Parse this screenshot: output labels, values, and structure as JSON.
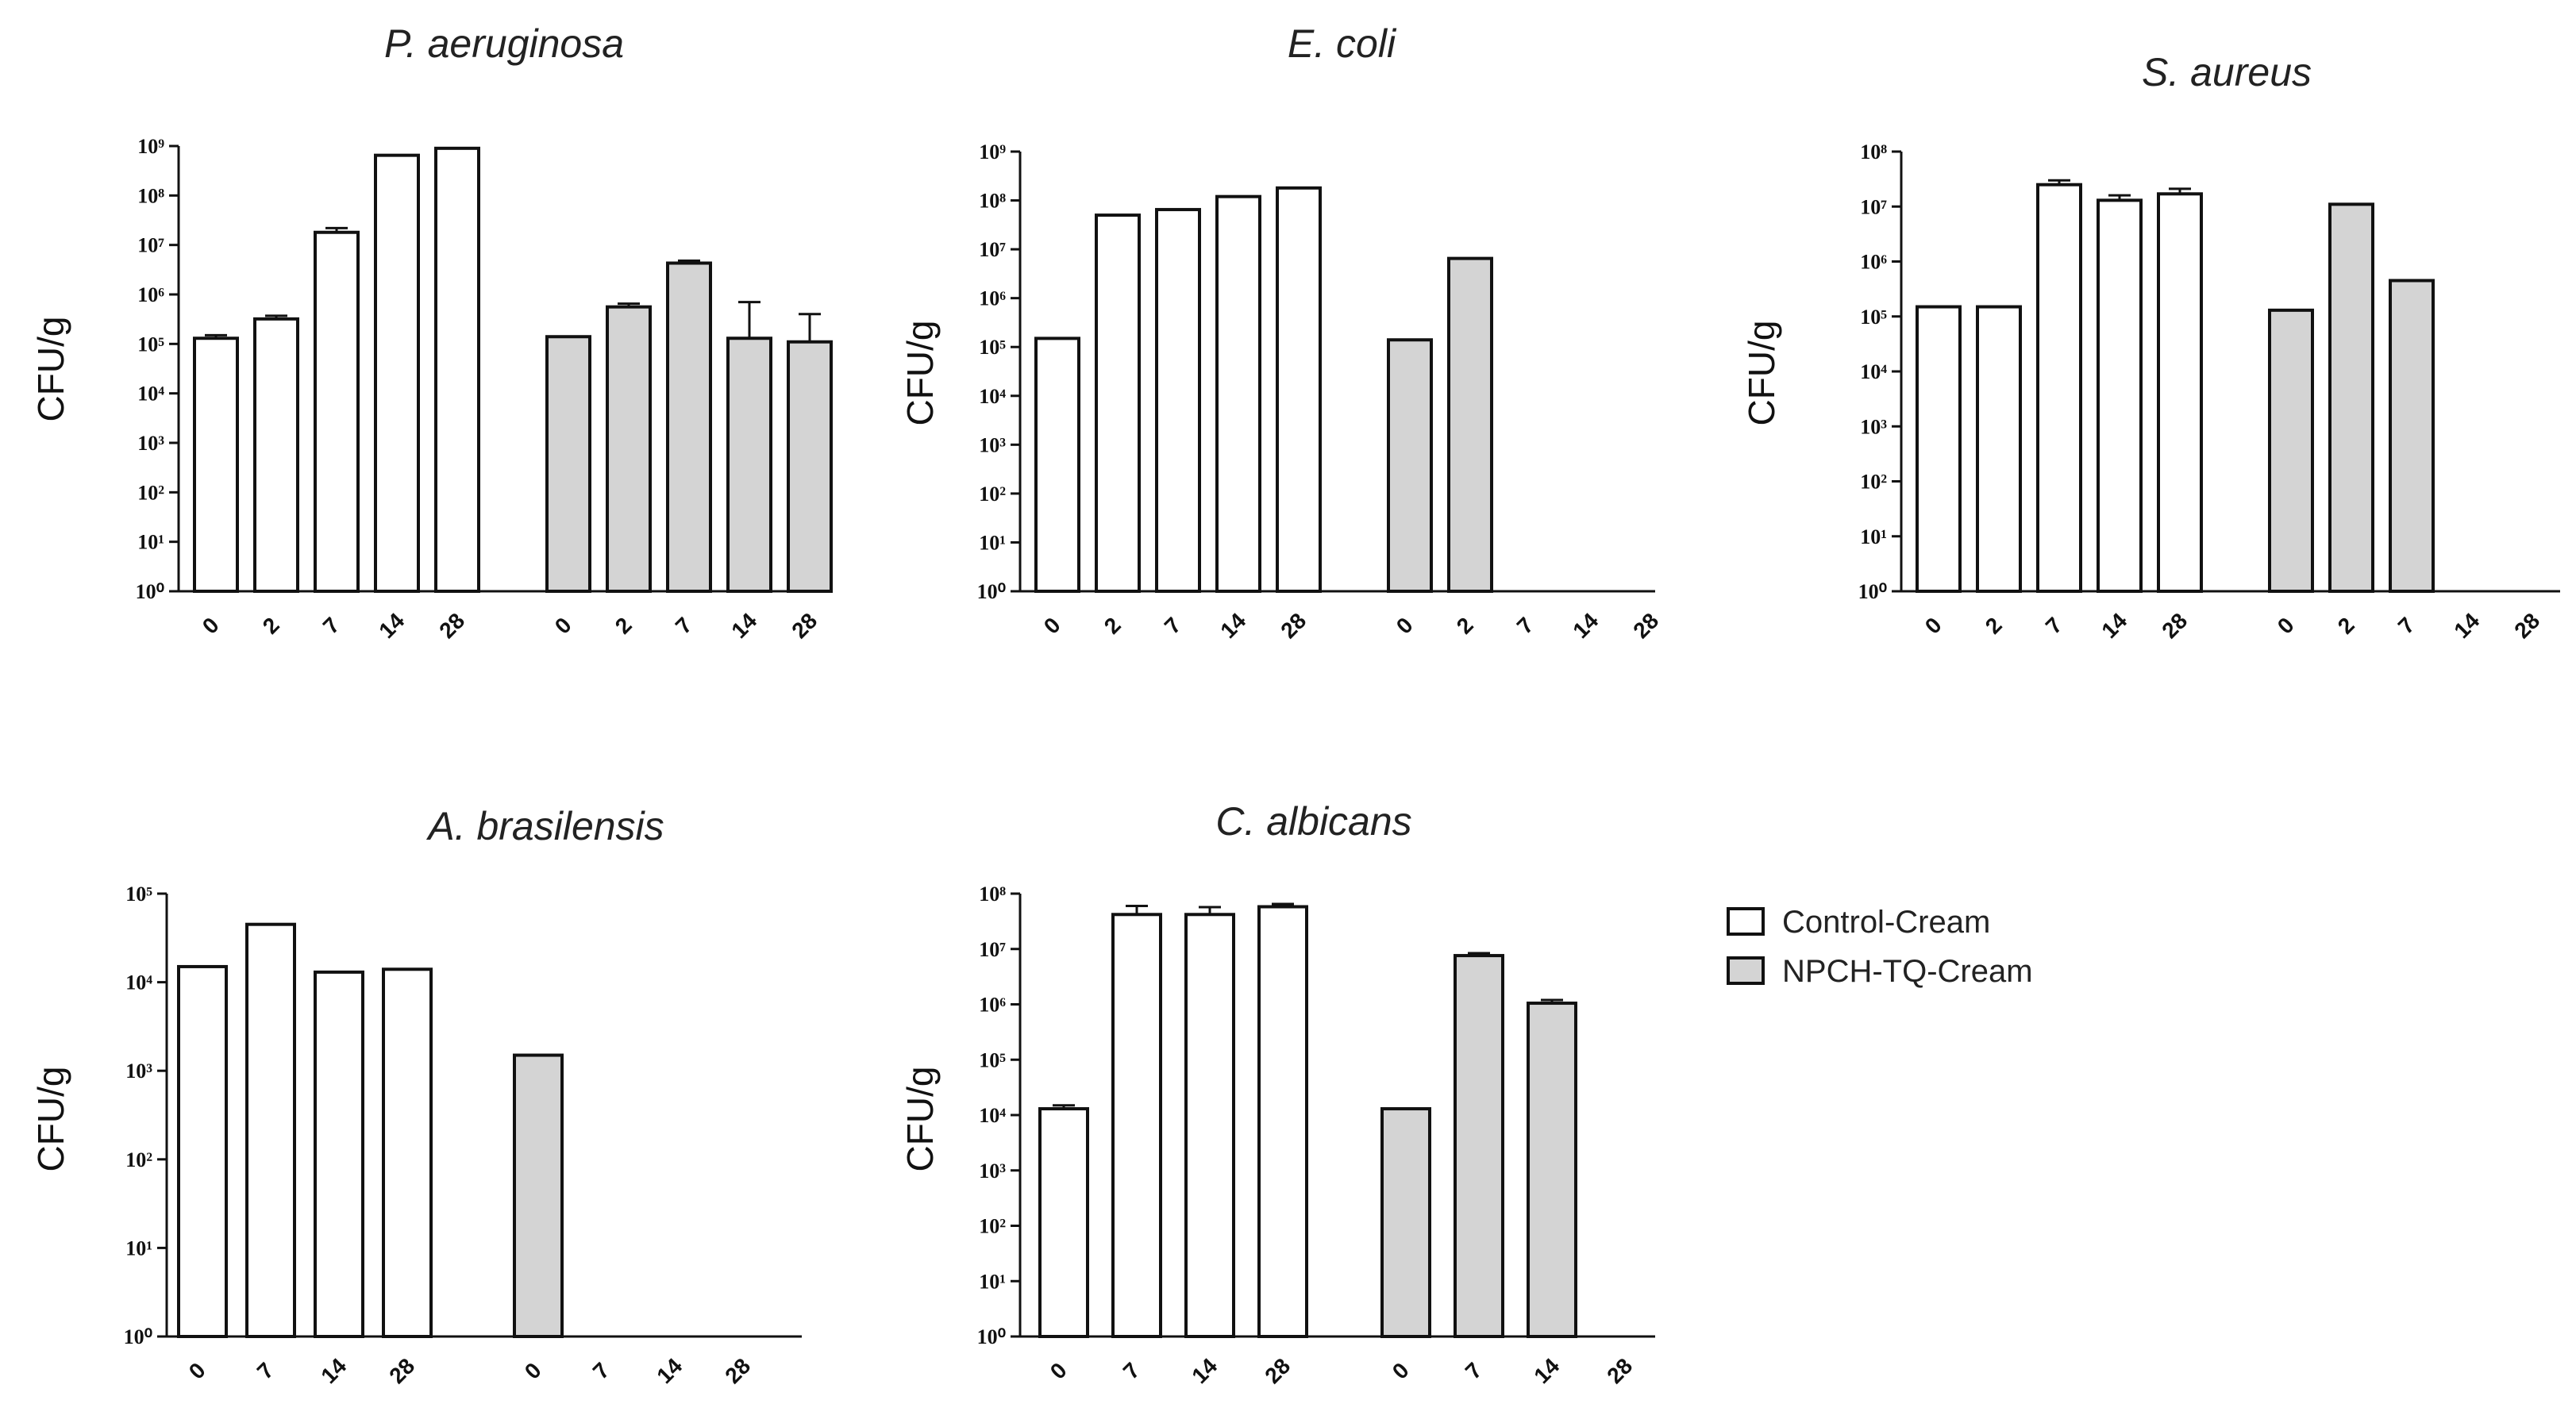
{
  "colors": {
    "control": "#ffffff",
    "npch": "#d4d4d4",
    "stroke": "#111111"
  },
  "legend": {
    "items": [
      {
        "label": "Control-Cream",
        "color": "#ffffff"
      },
      {
        "label": "NPCH-TQ-Cream",
        "color": "#d4d4d4"
      }
    ]
  },
  "chart_data": [
    {
      "type": "bar",
      "scale": "log",
      "title": "P. aeruginosa",
      "ylabel": "CFU/g",
      "ylim_exp": [
        0,
        9
      ],
      "groups": [
        {
          "name": "Control-Cream",
          "categories": [
            "0",
            "2",
            "7",
            "14",
            "28"
          ],
          "values": [
            130000,
            320000,
            18000000,
            650000000,
            900000000
          ],
          "errors": [
            150000,
            370000,
            22000000,
            0,
            0
          ]
        },
        {
          "name": "NPCH-TQ-Cream",
          "categories": [
            "0",
            "2",
            "7",
            "14",
            "28"
          ],
          "values": [
            140000,
            560000,
            4300000,
            130000,
            110000
          ],
          "errors": [
            0,
            650000,
            4800000,
            700000,
            400000
          ]
        }
      ]
    },
    {
      "type": "bar",
      "scale": "log",
      "title": "E. coli",
      "ylabel": "CFU/g",
      "ylim_exp": [
        0,
        9
      ],
      "groups": [
        {
          "name": "Control-Cream",
          "categories": [
            "0",
            "2",
            "7",
            "14",
            "28"
          ],
          "values": [
            150000,
            50000000,
            65000000,
            120000000,
            180000000
          ],
          "errors": [
            0,
            0,
            0,
            0,
            0
          ]
        },
        {
          "name": "NPCH-TQ-Cream",
          "categories": [
            "0",
            "2",
            "7",
            "14",
            "28"
          ],
          "values": [
            140000,
            6500000,
            0,
            0,
            0
          ],
          "errors": [
            0,
            0,
            0,
            0,
            0
          ]
        }
      ]
    },
    {
      "type": "bar",
      "scale": "log",
      "title": "S. aureus",
      "ylabel": "CFU/g",
      "ylim_exp": [
        0,
        8
      ],
      "groups": [
        {
          "name": "Control-Cream",
          "categories": [
            "0",
            "2",
            "7",
            "14",
            "28"
          ],
          "values": [
            150000,
            150000,
            25000000,
            13000000,
            17000000
          ],
          "errors": [
            0,
            0,
            30000000,
            16000000,
            21000000
          ]
        },
        {
          "name": "NPCH-TQ-Cream",
          "categories": [
            "0",
            "2",
            "7",
            "14",
            "28"
          ],
          "values": [
            130000,
            11000000,
            450000,
            0,
            0
          ],
          "errors": [
            0,
            0,
            0,
            0,
            0
          ]
        }
      ]
    },
    {
      "type": "bar",
      "scale": "log",
      "title": "A. brasilensis",
      "ylabel": "CFU/g",
      "ylim_exp": [
        0,
        5
      ],
      "groups": [
        {
          "name": "Control-Cream",
          "categories": [
            "0",
            "7",
            "14",
            "28"
          ],
          "values": [
            15000,
            45000,
            13000,
            14000
          ],
          "errors": [
            0,
            0,
            0,
            0
          ]
        },
        {
          "name": "NPCH-TQ-Cream",
          "categories": [
            "0",
            "7",
            "14",
            "28"
          ],
          "values": [
            1500,
            0,
            0,
            0
          ],
          "errors": [
            0,
            0,
            0,
            0
          ]
        }
      ]
    },
    {
      "type": "bar",
      "scale": "log",
      "title": "C. albicans",
      "ylabel": "CFU/g",
      "ylim_exp": [
        0,
        8
      ],
      "groups": [
        {
          "name": "Control-Cream",
          "categories": [
            "0",
            "7",
            "14",
            "28"
          ],
          "values": [
            13000,
            42000000,
            42000000,
            58000000
          ],
          "errors": [
            15000,
            60000000,
            57000000,
            65000000
          ]
        },
        {
          "name": "NPCH-TQ-Cream",
          "categories": [
            "0",
            "7",
            "14",
            "28"
          ],
          "values": [
            13000,
            7600000,
            1050000,
            0
          ],
          "errors": [
            0,
            8400000,
            1200000,
            0
          ]
        }
      ]
    }
  ]
}
